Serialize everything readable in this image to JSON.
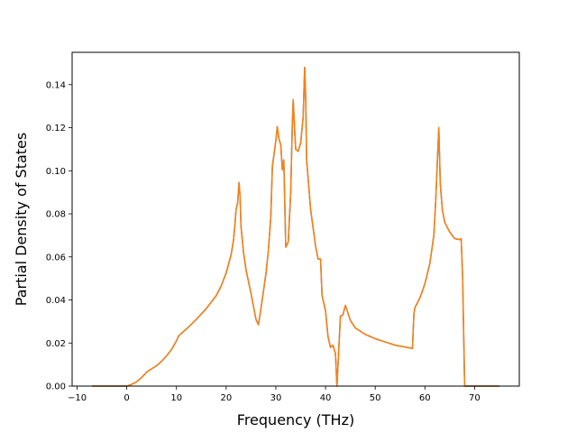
{
  "chart_data": {
    "type": "line",
    "xlabel": "Frequency (THz)",
    "ylabel": "Partial Density of States",
    "xlim": [
      -11,
      79
    ],
    "ylim": [
      0,
      0.155
    ],
    "x_ticks": [
      -10,
      0,
      10,
      20,
      30,
      40,
      50,
      60,
      70
    ],
    "x_tick_labels": [
      "−10",
      "0",
      "10",
      "20",
      "30",
      "40",
      "50",
      "60",
      "70"
    ],
    "y_ticks": [
      0,
      0.02,
      0.04,
      0.06,
      0.08,
      0.1,
      0.12,
      0.14
    ],
    "y_tick_labels": [
      "0.00",
      "0.02",
      "0.04",
      "0.06",
      "0.08",
      "0.10",
      "0.12",
      "0.14"
    ],
    "grid": false,
    "series": [
      {
        "color": "#1f77b4",
        "points": [
          [
            -7,
            0
          ],
          [
            0,
            0
          ],
          [
            1,
            0.0008
          ],
          [
            2,
            0.002
          ],
          [
            3,
            0.004
          ],
          [
            4,
            0.0065
          ],
          [
            5,
            0.008
          ],
          [
            6,
            0.0095
          ],
          [
            7,
            0.0115
          ],
          [
            8,
            0.014
          ],
          [
            9,
            0.017
          ],
          [
            10,
            0.021
          ],
          [
            10.5,
            0.0235
          ],
          [
            12,
            0.0265
          ],
          [
            14,
            0.031
          ],
          [
            16,
            0.036
          ],
          [
            18,
            0.042
          ],
          [
            19,
            0.0465
          ],
          [
            20,
            0.0525
          ],
          [
            21,
            0.061
          ],
          [
            21.5,
            0.068
          ],
          [
            21.8,
            0.076
          ],
          [
            22,
            0.082
          ],
          [
            22.3,
            0.085
          ],
          [
            22.6,
            0.0945
          ],
          [
            22.8,
            0.088
          ],
          [
            23,
            0.074
          ],
          [
            23.5,
            0.062
          ],
          [
            24,
            0.054
          ],
          [
            25,
            0.043
          ],
          [
            26,
            0.031
          ],
          [
            26.5,
            0.0285
          ],
          [
            27,
            0.036
          ],
          [
            28,
            0.052
          ],
          [
            28.5,
            0.063
          ],
          [
            29,
            0.079
          ],
          [
            29.3,
            0.102
          ],
          [
            29.6,
            0.107
          ],
          [
            30,
            0.114
          ],
          [
            30.3,
            0.1205
          ],
          [
            30.6,
            0.115
          ],
          [
            31,
            0.112
          ],
          [
            31.3,
            0.1005
          ],
          [
            31.6,
            0.105
          ],
          [
            32,
            0.0645
          ],
          [
            32.5,
            0.067
          ],
          [
            33,
            0.09
          ],
          [
            33.3,
            0.12
          ],
          [
            33.5,
            0.133
          ],
          [
            33.8,
            0.118
          ],
          [
            34,
            0.11
          ],
          [
            34.5,
            0.109
          ],
          [
            35,
            0.113
          ],
          [
            35.5,
            0.125
          ],
          [
            35.8,
            0.148
          ],
          [
            36,
            0.135
          ],
          [
            36.2,
            0.105
          ],
          [
            37,
            0.082
          ],
          [
            38,
            0.065
          ],
          [
            38.5,
            0.059
          ],
          [
            39,
            0.059
          ],
          [
            39.3,
            0.042
          ],
          [
            40,
            0.035
          ],
          [
            40.5,
            0.023
          ],
          [
            41,
            0.018
          ],
          [
            41.5,
            0.019
          ],
          [
            42,
            0.015
          ],
          [
            42.3,
            0.0
          ],
          [
            43,
            0.0325
          ],
          [
            43.5,
            0.033
          ],
          [
            44,
            0.0375
          ],
          [
            44.5,
            0.034
          ],
          [
            45,
            0.0305
          ],
          [
            46,
            0.027
          ],
          [
            48,
            0.024
          ],
          [
            50,
            0.022
          ],
          [
            52,
            0.0205
          ],
          [
            54,
            0.019
          ],
          [
            57.5,
            0.0175
          ],
          [
            57.8,
            0.034
          ],
          [
            58,
            0.0365
          ],
          [
            59,
            0.041
          ],
          [
            60,
            0.0475
          ],
          [
            61,
            0.057
          ],
          [
            61.8,
            0.07
          ],
          [
            62.2,
            0.087
          ],
          [
            62.5,
            0.104
          ],
          [
            62.8,
            0.12
          ],
          [
            63.1,
            0.094
          ],
          [
            63.5,
            0.082
          ],
          [
            64,
            0.076
          ],
          [
            65,
            0.0715
          ],
          [
            66,
            0.0685
          ],
          [
            67,
            0.068
          ],
          [
            67.3,
            0.0685
          ],
          [
            67.6,
            0.05
          ],
          [
            68,
            0.0
          ],
          [
            75,
            0
          ]
        ]
      },
      {
        "color": "#ff7f0e",
        "points": [
          [
            -7,
            0
          ],
          [
            0,
            0
          ],
          [
            1,
            0.0008
          ],
          [
            2,
            0.002
          ],
          [
            3,
            0.004
          ],
          [
            4,
            0.0065
          ],
          [
            5,
            0.008
          ],
          [
            6,
            0.0095
          ],
          [
            7,
            0.0115
          ],
          [
            8,
            0.014
          ],
          [
            9,
            0.017
          ],
          [
            10,
            0.021
          ],
          [
            10.5,
            0.0235
          ],
          [
            12,
            0.0265
          ],
          [
            14,
            0.031
          ],
          [
            16,
            0.036
          ],
          [
            18,
            0.042
          ],
          [
            19,
            0.0465
          ],
          [
            20,
            0.0525
          ],
          [
            21,
            0.061
          ],
          [
            21.5,
            0.068
          ],
          [
            21.8,
            0.076
          ],
          [
            22,
            0.082
          ],
          [
            22.3,
            0.085
          ],
          [
            22.6,
            0.0945
          ],
          [
            22.8,
            0.088
          ],
          [
            23,
            0.074
          ],
          [
            23.5,
            0.062
          ],
          [
            24,
            0.054
          ],
          [
            25,
            0.043
          ],
          [
            26,
            0.031
          ],
          [
            26.5,
            0.0285
          ],
          [
            27,
            0.036
          ],
          [
            28,
            0.052
          ],
          [
            28.5,
            0.063
          ],
          [
            29,
            0.079
          ],
          [
            29.3,
            0.102
          ],
          [
            29.6,
            0.107
          ],
          [
            30,
            0.114
          ],
          [
            30.3,
            0.1205
          ],
          [
            30.6,
            0.115
          ],
          [
            31,
            0.112
          ],
          [
            31.3,
            0.1005
          ],
          [
            31.6,
            0.105
          ],
          [
            32,
            0.0645
          ],
          [
            32.5,
            0.067
          ],
          [
            33,
            0.09
          ],
          [
            33.3,
            0.12
          ],
          [
            33.5,
            0.133
          ],
          [
            33.8,
            0.118
          ],
          [
            34,
            0.11
          ],
          [
            34.5,
            0.109
          ],
          [
            35,
            0.113
          ],
          [
            35.5,
            0.125
          ],
          [
            35.8,
            0.148
          ],
          [
            36,
            0.135
          ],
          [
            36.2,
            0.105
          ],
          [
            37,
            0.082
          ],
          [
            38,
            0.065
          ],
          [
            38.5,
            0.059
          ],
          [
            39,
            0.059
          ],
          [
            39.3,
            0.042
          ],
          [
            40,
            0.035
          ],
          [
            40.5,
            0.023
          ],
          [
            41,
            0.018
          ],
          [
            41.5,
            0.019
          ],
          [
            42,
            0.015
          ],
          [
            42.3,
            0.0
          ],
          [
            43,
            0.0325
          ],
          [
            43.5,
            0.033
          ],
          [
            44,
            0.0375
          ],
          [
            44.5,
            0.034
          ],
          [
            45,
            0.0305
          ],
          [
            46,
            0.027
          ],
          [
            48,
            0.024
          ],
          [
            50,
            0.022
          ],
          [
            52,
            0.0205
          ],
          [
            54,
            0.019
          ],
          [
            57.5,
            0.0175
          ],
          [
            57.8,
            0.034
          ],
          [
            58,
            0.0365
          ],
          [
            59,
            0.041
          ],
          [
            60,
            0.0475
          ],
          [
            61,
            0.057
          ],
          [
            61.8,
            0.07
          ],
          [
            62.2,
            0.087
          ],
          [
            62.5,
            0.104
          ],
          [
            62.8,
            0.12
          ],
          [
            63.1,
            0.094
          ],
          [
            63.5,
            0.082
          ],
          [
            64,
            0.076
          ],
          [
            65,
            0.0715
          ],
          [
            66,
            0.0685
          ],
          [
            67,
            0.068
          ],
          [
            67.3,
            0.0685
          ],
          [
            67.6,
            0.05
          ],
          [
            68,
            0.0
          ],
          [
            75,
            0
          ]
        ]
      }
    ]
  }
}
